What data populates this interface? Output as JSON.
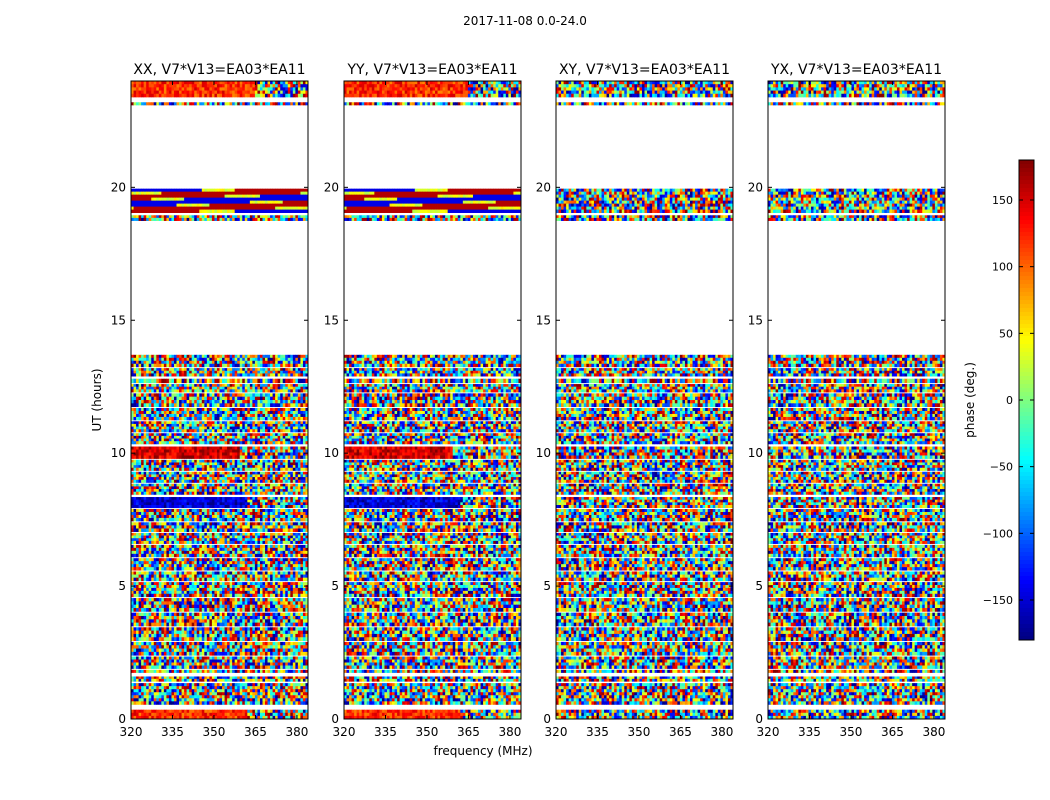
{
  "figure": {
    "suptitle": "2017-11-08 0.0-24.0"
  },
  "chart_data": {
    "type": "heatmap",
    "panels": [
      {
        "title": "XX, V7*V13=EA03*EA11",
        "variant": "parallel"
      },
      {
        "title": "YY, V7*V13=EA03*EA11",
        "variant": "parallel"
      },
      {
        "title": "XY, V7*V13=EA03*EA11",
        "variant": "cross"
      },
      {
        "title": "YX, V7*V13=EA03*EA11",
        "variant": "cross"
      }
    ],
    "xlabel": "frequency (MHz)",
    "ylabel": "UT (hours)",
    "xlim": [
      320,
      384
    ],
    "ylim": [
      0,
      24
    ],
    "xticks": [
      320,
      335,
      350,
      365,
      380
    ],
    "yticks": [
      0,
      5,
      10,
      15,
      20
    ],
    "colorbar": {
      "label": "phase (deg.)",
      "range": [
        -180,
        180
      ],
      "ticks": [
        150,
        100,
        50,
        0,
        -50,
        -100,
        -150
      ],
      "tick_labels": [
        "150",
        "100",
        "50",
        "0",
        "−50",
        "−100",
        "−150"
      ],
      "colormap": "jet"
    },
    "data_rows_hours": [
      [
        0.0,
        0.35
      ],
      [
        0.55,
        1.35
      ],
      [
        1.42,
        1.6
      ],
      [
        1.75,
        1.85
      ],
      [
        1.9,
        2.35
      ],
      [
        2.4,
        2.9
      ],
      [
        2.95,
        3.45
      ],
      [
        3.5,
        4.0
      ],
      [
        4.05,
        4.55
      ],
      [
        4.6,
        5.15
      ],
      [
        5.2,
        5.55
      ],
      [
        5.6,
        6.05
      ],
      [
        6.1,
        6.55
      ],
      [
        6.6,
        7.0
      ],
      [
        7.05,
        7.4
      ],
      [
        7.45,
        7.9
      ],
      [
        7.95,
        8.35
      ],
      [
        8.45,
        8.85
      ],
      [
        8.9,
        9.3
      ],
      [
        9.35,
        9.75
      ],
      [
        9.8,
        10.25
      ],
      [
        10.35,
        10.75
      ],
      [
        10.8,
        11.2
      ],
      [
        11.25,
        11.7
      ],
      [
        11.75,
        12.25
      ],
      [
        12.3,
        12.6
      ],
      [
        12.65,
        12.8
      ],
      [
        12.9,
        13.2
      ],
      [
        13.25,
        13.7
      ],
      [
        18.75,
        18.95
      ],
      [
        19.05,
        19.95
      ],
      [
        23.1,
        23.2
      ],
      [
        23.4,
        24.0
      ]
    ],
    "features": [
      {
        "panels": [
          "XX",
          "YY"
        ],
        "ut": [
          23.4,
          24.0
        ],
        "phase_deg": 120,
        "freq_mhz": [
          320,
          365
        ]
      },
      {
        "panels": [
          "XX",
          "YY"
        ],
        "ut": [
          0.0,
          0.35
        ],
        "phase_deg": 120,
        "freq_mhz": [
          320,
          362
        ]
      },
      {
        "panels": [
          "XX",
          "YY"
        ],
        "ut": [
          9.8,
          10.25
        ],
        "phase_deg": 150,
        "freq_mhz": [
          320,
          359
        ]
      },
      {
        "panels": [
          "XX",
          "YY"
        ],
        "ut": [
          7.95,
          8.35
        ],
        "phase_deg": -150,
        "freq_mhz": [
          320,
          362
        ]
      },
      {
        "panels": [
          "XX",
          "YY"
        ],
        "ut": [
          19.05,
          19.95
        ],
        "phase_deg": null,
        "freq_mhz": [
          320,
          384
        ]
      }
    ]
  }
}
